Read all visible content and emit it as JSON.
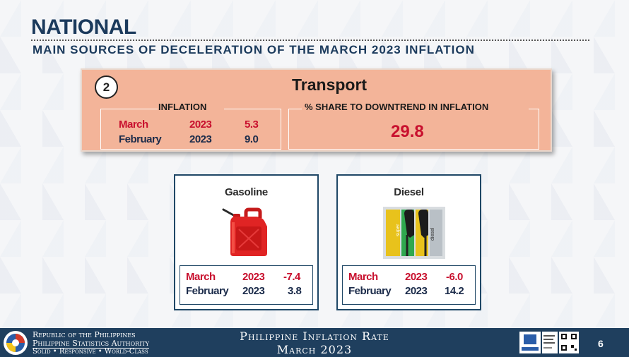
{
  "header": {
    "title": "NATIONAL",
    "subtitle": "MAIN SOURCES OF DECELERATION OF THE MARCH 2023 INFLATION"
  },
  "transport": {
    "number": "2",
    "title": "Transport",
    "inflation_label": "INFLATION",
    "share_label": "% SHARE TO DOWNTREND IN INFLATION",
    "share_value": "29.8",
    "rows": [
      {
        "month": "March",
        "year": "2023",
        "value": "5.3"
      },
      {
        "month": "February",
        "year": "2023",
        "value": "9.0"
      }
    ]
  },
  "cards": [
    {
      "title": "Gasoline",
      "icon": "gas-can-icon",
      "rows": [
        {
          "month": "March",
          "year": "2023",
          "value": "-7.4"
        },
        {
          "month": "February",
          "year": "2023",
          "value": "3.8"
        }
      ]
    },
    {
      "title": "Diesel",
      "icon": "fuel-pump-nozzles-icon",
      "pump_labels": [
        "super",
        "diesel"
      ],
      "rows": [
        {
          "month": "March",
          "year": "2023",
          "value": "-6.0"
        },
        {
          "month": "February",
          "year": "2023",
          "value": "14.2"
        }
      ]
    }
  ],
  "footer": {
    "org_line1": "Republic of the Philippines",
    "org_line2": "Philippine Statistics Authority",
    "org_line3": "Solid • Responsive • World-Class",
    "center_line1": "Philippine Inflation Rate",
    "center_line2": "March 2023",
    "page_number": "6"
  },
  "colors": {
    "navy": "#1b3a5c",
    "red": "#c8102e",
    "salmon": "#f3b499",
    "footer": "#1f3f5e"
  }
}
